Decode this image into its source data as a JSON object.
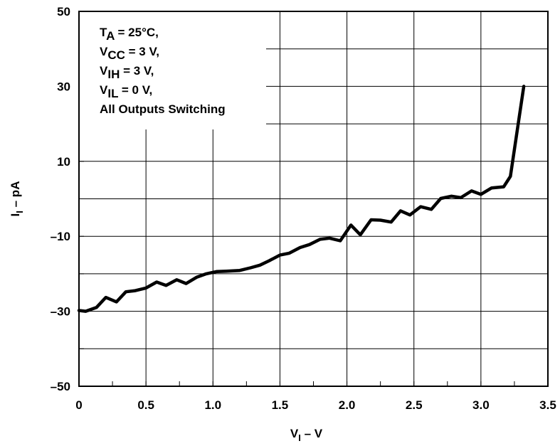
{
  "chart_data": {
    "type": "line",
    "xlabel": {
      "main": "V",
      "sub": "I",
      "unit": " – V"
    },
    "ylabel": {
      "main": "I",
      "sub": "I",
      "unit": " – pA"
    },
    "xlim": [
      0,
      3.5
    ],
    "ylim": [
      -50,
      50
    ],
    "grid": true,
    "x_ticks": [
      0,
      0.5,
      1.0,
      1.5,
      2.0,
      2.5,
      3.0,
      3.5
    ],
    "x_tick_labels": [
      "0",
      "0.5",
      "1.0",
      "1.5",
      "2.0",
      "2.5",
      "3.0",
      "3.5"
    ],
    "y_ticks": [
      50,
      30,
      10,
      -10,
      -30,
      -50
    ],
    "y_tick_labels": [
      "50",
      "30",
      "10",
      "–10",
      "–30",
      "–50"
    ],
    "y_minor_step": 10,
    "x_minor_step": 0.25,
    "annotation": [
      {
        "main": "T",
        "sub": "A",
        "rest": " = 25°C,"
      },
      {
        "main": "V",
        "sub": "CC",
        "rest": " = 3 V,"
      },
      {
        "main": "V",
        "sub": "IH",
        "rest": " = 3 V,"
      },
      {
        "main": "V",
        "sub": "IL",
        "rest": " = 0 V,"
      },
      {
        "main": "All Outputs Switching",
        "sub": "",
        "rest": ""
      }
    ],
    "series": [
      {
        "x": [
          0,
          0.05,
          0.13,
          0.2,
          0.28,
          0.35,
          0.42,
          0.5,
          0.58,
          0.65,
          0.73,
          0.8,
          0.88,
          0.95,
          1.03,
          1.1,
          1.2,
          1.28,
          1.35,
          1.42,
          1.5,
          1.57,
          1.65,
          1.72,
          1.8,
          1.87,
          1.95,
          2.03,
          2.1,
          2.18,
          2.25,
          2.33,
          2.4,
          2.47,
          2.55,
          2.63,
          2.7,
          2.78,
          2.85,
          2.93,
          3.0,
          3.08,
          3.17,
          3.22,
          3.32
        ],
        "y": [
          -29.8,
          -30,
          -29,
          -26.3,
          -27.5,
          -24.8,
          -24.5,
          -23.8,
          -22.2,
          -23.1,
          -21.6,
          -22.6,
          -20.9,
          -20,
          -19.4,
          -19.3,
          -19.1,
          -18.4,
          -17.7,
          -16.5,
          -15,
          -14.5,
          -13,
          -12.2,
          -10.8,
          -10.5,
          -11.2,
          -7,
          -9.6,
          -5.6,
          -5.7,
          -6.2,
          -3.2,
          -4.3,
          -2.1,
          -2.8,
          0.1,
          0.7,
          0.3,
          2.1,
          1.2,
          2.9,
          3.2,
          6,
          30
        ]
      }
    ]
  }
}
